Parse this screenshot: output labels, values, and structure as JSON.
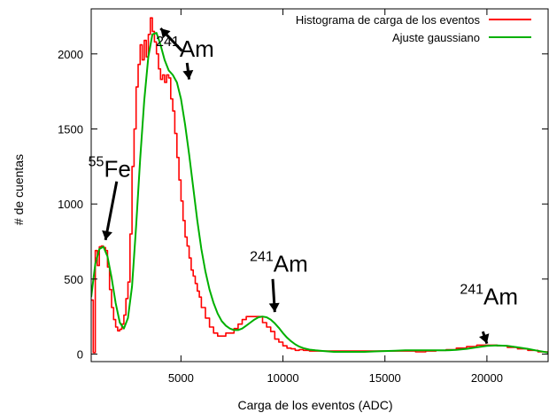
{
  "chart_data": {
    "type": "line",
    "title": "",
    "xlabel": "Carga de los eventos (ADC)",
    "ylabel": "# de cuentas",
    "xlim": [
      600,
      23000
    ],
    "ylim": [
      -50,
      2300
    ],
    "xticks": [
      5000,
      10000,
      15000,
      20000
    ],
    "yticks": [
      0,
      500,
      1000,
      1500,
      2000
    ],
    "grid": false,
    "legend_position": "top-right",
    "series": [
      {
        "name": "Histograma de carga de los eventos",
        "color": "#ff0000",
        "style": "step",
        "x": [
          600,
          700,
          800,
          900,
          1000,
          1100,
          1200,
          1300,
          1400,
          1500,
          1600,
          1700,
          1800,
          1900,
          2000,
          2100,
          2200,
          2300,
          2400,
          2500,
          2600,
          2700,
          2800,
          2900,
          3000,
          3100,
          3200,
          3300,
          3400,
          3500,
          3600,
          3700,
          3800,
          3900,
          4000,
          4100,
          4200,
          4300,
          4400,
          4500,
          4600,
          4700,
          4800,
          4900,
          5000,
          5100,
          5200,
          5300,
          5400,
          5500,
          5600,
          5700,
          5800,
          5900,
          6000,
          6200,
          6400,
          6600,
          6800,
          7000,
          7200,
          7400,
          7600,
          7800,
          8000,
          8200,
          8400,
          8600,
          8800,
          9000,
          9200,
          9400,
          9600,
          9800,
          10000,
          10200,
          10400,
          10600,
          10800,
          11000,
          11300,
          11600,
          12000,
          12500,
          13000,
          13500,
          14000,
          14500,
          15000,
          15500,
          16000,
          16500,
          17000,
          17500,
          18000,
          18500,
          19000,
          19500,
          20000,
          20500,
          21000,
          21500,
          22000,
          22500,
          23000
        ],
        "y": [
          360,
          10,
          690,
          590,
          715,
          720,
          710,
          690,
          580,
          430,
          310,
          230,
          180,
          155,
          165,
          200,
          260,
          370,
          480,
          800,
          1250,
          1500,
          1780,
          1930,
          2060,
          1960,
          2090,
          1980,
          2130,
          2240,
          2150,
          2080,
          2000,
          1900,
          1830,
          1860,
          1810,
          1860,
          1840,
          1700,
          1620,
          1470,
          1310,
          1160,
          1020,
          890,
          780,
          720,
          640,
          560,
          520,
          470,
          420,
          380,
          310,
          240,
          180,
          140,
          120,
          120,
          140,
          140,
          170,
          200,
          230,
          250,
          250,
          250,
          250,
          210,
          180,
          150,
          100,
          80,
          55,
          40,
          35,
          25,
          30,
          25,
          20,
          20,
          20,
          20,
          20,
          20,
          20,
          20,
          20,
          20,
          20,
          15,
          20,
          25,
          30,
          40,
          50,
          60,
          60,
          55,
          45,
          35,
          25,
          15,
          0
        ]
      },
      {
        "name": "Ajuste gaussiano",
        "color": "#00b000",
        "style": "line",
        "x": [
          600,
          800,
          1000,
          1200,
          1400,
          1600,
          1800,
          2000,
          2200,
          2400,
          2600,
          2800,
          3000,
          3200,
          3400,
          3600,
          3800,
          4000,
          4200,
          4400,
          4600,
          4800,
          5000,
          5200,
          5400,
          5600,
          5800,
          6000,
          6200,
          6400,
          6600,
          6800,
          7000,
          7200,
          7400,
          7600,
          7800,
          8000,
          8200,
          8400,
          8600,
          8800,
          9000,
          9200,
          9400,
          9600,
          9800,
          10000,
          10200,
          10400,
          10600,
          10800,
          11000,
          11300,
          11600,
          12000,
          12500,
          13000,
          13500,
          14000,
          14500,
          15000,
          15500,
          16000,
          16500,
          17000,
          17500,
          18000,
          18500,
          19000,
          19500,
          20000,
          20500,
          21000,
          21500,
          22000,
          22500,
          23000
        ],
        "y": [
          380,
          600,
          700,
          715,
          650,
          510,
          340,
          210,
          170,
          240,
          450,
          850,
          1300,
          1690,
          1980,
          2130,
          2140,
          2060,
          1960,
          1890,
          1860,
          1810,
          1700,
          1530,
          1330,
          1110,
          890,
          700,
          550,
          430,
          340,
          270,
          220,
          190,
          170,
          160,
          160,
          170,
          190,
          210,
          230,
          245,
          250,
          245,
          230,
          205,
          175,
          140,
          110,
          85,
          65,
          50,
          40,
          30,
          25,
          20,
          15,
          15,
          15,
          15,
          18,
          20,
          22,
          25,
          25,
          25,
          25,
          25,
          28,
          35,
          45,
          55,
          58,
          55,
          45,
          35,
          22,
          10
        ]
      }
    ],
    "annotations": [
      {
        "sup": "241",
        "text": "Am",
        "x": 5200,
        "y": 1980
      },
      {
        "sup": "55",
        "text": "Fe",
        "x": 1500,
        "y": 1180
      },
      {
        "sup": "241",
        "text": "Am",
        "x": 9800,
        "y": 550
      },
      {
        "sup": "241",
        "text": "Am",
        "x": 20100,
        "y": 330
      }
    ],
    "arrows": [
      {
        "from": [
          5050,
          2020
        ],
        "to": [
          4000,
          2170
        ]
      },
      {
        "from": [
          5300,
          1940
        ],
        "to": [
          5400,
          1830
        ]
      },
      {
        "from": [
          1850,
          1150
        ],
        "to": [
          1300,
          760
        ]
      },
      {
        "from": [
          9500,
          500
        ],
        "to": [
          9600,
          280
        ]
      },
      {
        "from": [
          19800,
          150
        ],
        "to": [
          20000,
          70
        ]
      }
    ]
  }
}
